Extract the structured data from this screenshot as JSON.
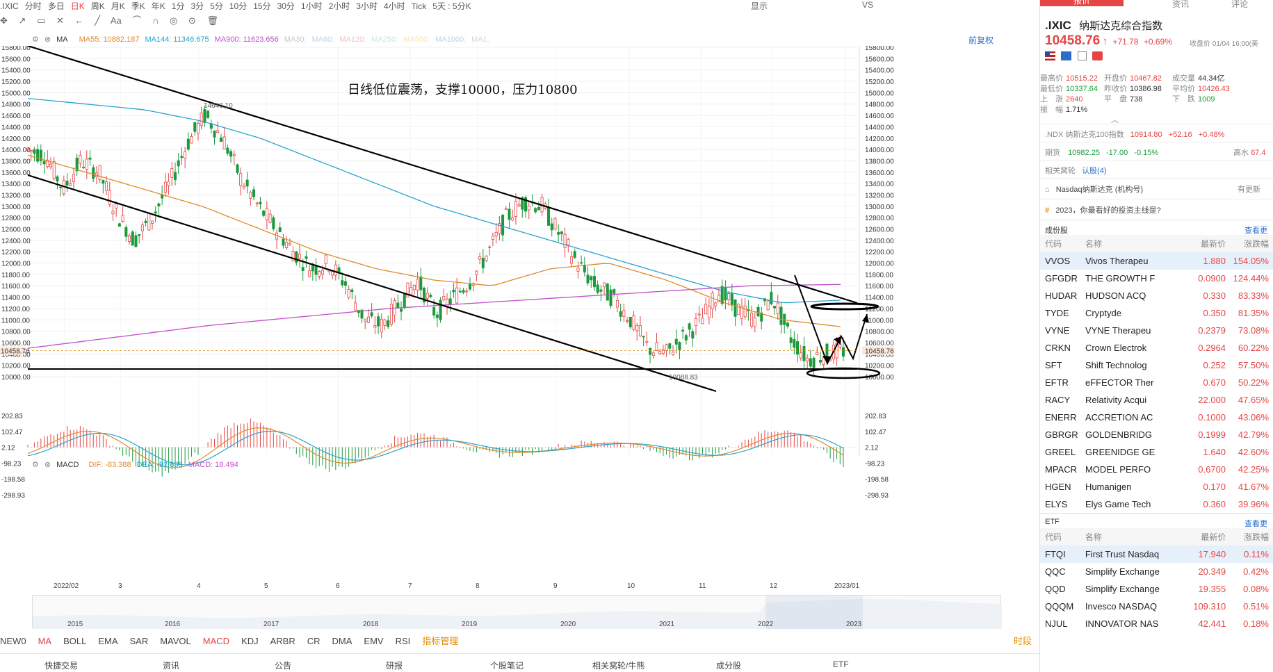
{
  "toolbar": {
    "items": [
      ".IXIC",
      "分时",
      "多日",
      "日K",
      "周K",
      "月K",
      "季K",
      "年K",
      "1分",
      "3分",
      "5分",
      "10分",
      "15分",
      "30分",
      "1小时",
      "2小时",
      "3小时",
      "4小时",
      "Tick",
      "5天 : 5分K"
    ],
    "active_index": 3,
    "right_items": [
      "显示",
      "VS"
    ]
  },
  "ma_legend": {
    "label": "MA",
    "items": [
      {
        "text": "MA55: 10882.187",
        "color": "#e08a2a"
      },
      {
        "text": "MA144: 11346.675",
        "color": "#2aa3cc"
      },
      {
        "text": "MA900: 11623.656",
        "color": "#c050c8"
      },
      {
        "text": "MA30:",
        "color": "#c8c8c8"
      },
      {
        "text": "MA60:",
        "color": "#b8d8f0"
      },
      {
        "text": "MA120:",
        "color": "#f5c0c0"
      },
      {
        "text": "MA250:",
        "color": "#c8e8d8"
      },
      {
        "text": "MA500:",
        "color": "#f5e6b0"
      },
      {
        "text": "MA1000:",
        "color": "#c0d0e8"
      },
      {
        "text": "MA1:",
        "color": "#d8d8d8"
      }
    ],
    "fuquan": "前复权"
  },
  "annotation": "日线低位震荡，支撑10000，压力10800",
  "price_axis": [
    "15800.00",
    "15600.00",
    "15400.00",
    "15200.00",
    "15000.00",
    "14800.00",
    "14600.00",
    "14400.00",
    "14200.00",
    "14000.00",
    "13800.00",
    "13600.00",
    "13400.00",
    "13200.00",
    "13000.00",
    "12800.00",
    "12600.00",
    "12400.00",
    "12200.00",
    "12000.00",
    "11800.00",
    "11600.00",
    "11400.00",
    "11200.00",
    "11000.00",
    "10800.00",
    "10600.00",
    "10400.00",
    "10200.00",
    "10000.00"
  ],
  "last_price_tag": "10458.76",
  "high_label": "14646.10",
  "low_label": "10088.83",
  "macd_legend": {
    "label": "MACD",
    "dif": "DIF: -83.388",
    "dea": "DEA: -92.635",
    "macd": "MACD: 18.494"
  },
  "macd_axis": [
    "202.83",
    "102.47",
    "2.12",
    "-98.23",
    "-198.58",
    "-298.93"
  ],
  "months": [
    "2022/02",
    "3",
    "4",
    "5",
    "6",
    "7",
    "8",
    "9",
    "10",
    "11",
    "12",
    "2023/01"
  ],
  "years": [
    "2015",
    "2016",
    "2017",
    "2018",
    "2019",
    "2020",
    "2021",
    "2022",
    "2023"
  ],
  "indicators": {
    "items": [
      "NEW0",
      "MA",
      "BOLL",
      "EMA",
      "SAR",
      "MAVOL",
      "MACD",
      "KDJ",
      "ARBR",
      "CR",
      "DMA",
      "EMV",
      "RSI"
    ],
    "active": [
      "MA",
      "MACD"
    ],
    "manage": "指标管理",
    "time_share": "时段"
  },
  "bottom_tabs": [
    "快捷交易",
    "资讯",
    "公告",
    "研报",
    "个股笔记",
    "相关窝轮/牛熊",
    "成分股",
    "ETF"
  ],
  "right_panel": {
    "tabs": [
      "报价",
      "资讯",
      "评论"
    ],
    "symbol": ".IXIC",
    "name": "纳斯达克综合指数",
    "price": "10458.76",
    "arrow": "↑",
    "change": "+71.78",
    "change_pct": "+0.69%",
    "close_time": "收盘价 01/04 16:00(美",
    "stats": [
      [
        {
          "l": "最高价",
          "v": "10515.22",
          "c": "red"
        },
        {
          "l": "开盘价",
          "v": "10467.82",
          "c": "red"
        },
        {
          "l": "成交量",
          "v": "44.34亿",
          "c": "dark"
        }
      ],
      [
        {
          "l": "最低价",
          "v": "10337.64",
          "c": "green"
        },
        {
          "l": "昨收价",
          "v": "10386.98",
          "c": "dark"
        },
        {
          "l": "平均价",
          "v": "10426.43",
          "c": "red"
        }
      ],
      [
        {
          "l": "上　涨",
          "v": "2640",
          "c": "red"
        },
        {
          "l": "平　盘",
          "v": "738",
          "c": "dark"
        },
        {
          "l": "下　跌",
          "v": "1009",
          "c": "green"
        }
      ],
      [
        {
          "l": "振　幅",
          "v": "1.71%",
          "c": "dark"
        }
      ]
    ],
    "ndx": {
      "name": ".NDX 纳斯达克100指数",
      "price": "10914.80",
      "change": "+52.16",
      "pct": "+0.48%"
    },
    "futures": {
      "label": "期货",
      "price": "10982.25",
      "change": "-17.00",
      "pct": "-0.15%",
      "extra_label": "高水",
      "extra_val": "67.4"
    },
    "warrants": {
      "label": "相关窝轮",
      "link": "认股(4)"
    },
    "news1": {
      "text": "Nasdaq纳斯达克 (机构号)",
      "right": "有更新"
    },
    "news2": {
      "text": "2023，你最看好的投资主线是?"
    },
    "components": {
      "title": "成份股",
      "more": "查看更",
      "headers": [
        "代码",
        "名称",
        "最新价",
        "涨跌幅"
      ],
      "rows": [
        [
          "VVOS",
          "Vivos Therapeu",
          "1.880",
          "154.05%"
        ],
        [
          "GFGDR",
          "THE GROWTH F",
          "0.0900",
          "124.44%"
        ],
        [
          "HUDAR",
          "HUDSON ACQ",
          "0.330",
          "83.33%"
        ],
        [
          "TYDE",
          "Cryptyde",
          "0.350",
          "81.35%"
        ],
        [
          "VYNE",
          "VYNE Therapeu",
          "0.2379",
          "73.08%"
        ],
        [
          "CRKN",
          "Crown Electrok",
          "0.2964",
          "60.22%"
        ],
        [
          "SFT",
          "Shift Technolog",
          "0.252",
          "57.50%"
        ],
        [
          "EFTR",
          "eFFECTOR Ther",
          "0.670",
          "50.22%"
        ],
        [
          "RACY",
          "Relativity Acqui",
          "22.000",
          "47.65%"
        ],
        [
          "ENERR",
          "ACCRETION AC",
          "0.1000",
          "43.06%"
        ],
        [
          "GBRGR",
          "GOLDENBRIDG",
          "0.1999",
          "42.79%"
        ],
        [
          "GREEL",
          "GREENIDGE GE",
          "1.640",
          "42.60%"
        ],
        [
          "MPACR",
          "MODEL PERFO",
          "0.6700",
          "42.25%"
        ],
        [
          "HGEN",
          "Humanigen",
          "0.170",
          "41.67%"
        ],
        [
          "ELYS",
          "Elys Game Tech",
          "0.360",
          "39.96%"
        ]
      ]
    },
    "etf": {
      "title": "ETF",
      "more": "查看更",
      "headers": [
        "代码",
        "名称",
        "最新价",
        "涨跌幅"
      ],
      "rows": [
        [
          "FTQI",
          "First Trust Nasdaq",
          "17.940",
          "0.11%"
        ],
        [
          "QQC",
          "Simplify Exchange",
          "20.349",
          "0.42%"
        ],
        [
          "QQD",
          "Simplify Exchange",
          "19.355",
          "0.08%"
        ],
        [
          "QQQM",
          "Invesco NASDAQ",
          "109.310",
          "0.51%"
        ],
        [
          "NJUL",
          "INNOVATOR NAS",
          "42.441",
          "0.18%"
        ]
      ]
    }
  },
  "chart_data": {
    "type": "candlestick",
    "title": "",
    "ylim": [
      10000,
      15800
    ],
    "x": [
      "2022/02",
      "3",
      "4",
      "5",
      "6",
      "7",
      "8",
      "9",
      "10",
      "11",
      "12",
      "2023/01"
    ],
    "close_series_approx": [
      14000,
      13900,
      13300,
      13800,
      13600,
      12900,
      12400,
      12800,
      13400,
      14100,
      14600,
      14200,
      13500,
      13000,
      12600,
      12200,
      11900,
      12000,
      11600,
      11000,
      10900,
      11300,
      11700,
      11100,
      11400,
      11700,
      12200,
      12800,
      13100,
      13000,
      12500,
      12000,
      11600,
      11400,
      11000,
      10500,
      10400,
      10700,
      11000,
      11500,
      11200,
      11000,
      11400,
      10700,
      10300,
      10400,
      10458.76
    ],
    "ma55": [
      13900,
      13600,
      13300,
      13000,
      12600,
      12200,
      11900,
      11700,
      11600,
      11900,
      12000,
      11700,
      11300,
      11000,
      10880
    ],
    "ma144": [
      14900,
      14800,
      14700,
      14500,
      14200,
      13800,
      13400,
      13000,
      12700,
      12400,
      12100,
      11800,
      11500,
      11300,
      11346
    ],
    "ma900": [
      10500,
      10700,
      10900,
      11050,
      11200,
      11300,
      11400,
      11500,
      11600,
      11624
    ],
    "macd": {
      "dif": -83.388,
      "dea": -92.635,
      "macd": 18.494,
      "ylim": [
        -298.93,
        202.83
      ]
    }
  }
}
